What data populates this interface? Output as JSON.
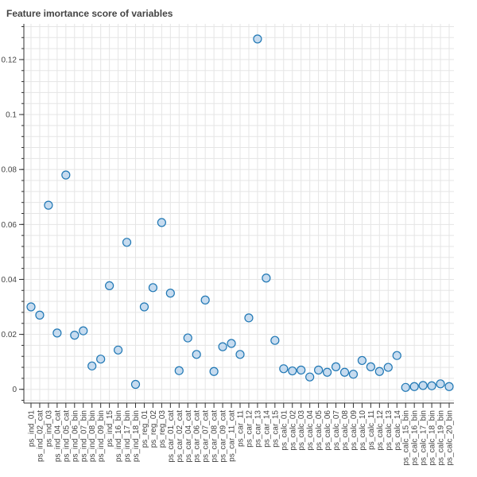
{
  "chart_data": {
    "type": "scatter",
    "title": "Feature imortance score of variables",
    "xlabel": "",
    "ylabel": "",
    "ylim": [
      -0.005,
      0.133
    ],
    "yticks": [
      0,
      0.02,
      0.04,
      0.06,
      0.08,
      0.1,
      0.12
    ],
    "ytick_labels": [
      "0",
      "0.02",
      "0.04",
      "0.06",
      "0.08",
      "0.1",
      "0.12"
    ],
    "grid": true,
    "marker": {
      "fill": "#c6dbef",
      "stroke": "#1f77b4"
    },
    "categories": [
      "ps_ind_01",
      "ps_ind_02_cat",
      "ps_ind_03",
      "ps_ind_04_cat",
      "ps_ind_05_cat",
      "ps_ind_06_bin",
      "ps_ind_07_bin",
      "ps_ind_08_bin",
      "ps_ind_09_bin",
      "ps_ind_15",
      "ps_ind_16_bin",
      "ps_ind_17_bin",
      "ps_ind_18_bin",
      "ps_reg_01",
      "ps_reg_02",
      "ps_reg_03",
      "ps_car_01_cat",
      "ps_car_02_cat",
      "ps_car_04_cat",
      "ps_car_06_cat",
      "ps_car_07_cat",
      "ps_car_08_cat",
      "ps_car_09_cat",
      "ps_car_11_cat",
      "ps_car_11",
      "ps_car_12",
      "ps_car_13",
      "ps_car_14",
      "ps_car_15",
      "ps_calc_01",
      "ps_calc_02",
      "ps_calc_03",
      "ps_calc_04",
      "ps_calc_05",
      "ps_calc_06",
      "ps_calc_07",
      "ps_calc_08",
      "ps_calc_09",
      "ps_calc_10",
      "ps_calc_11",
      "ps_calc_12",
      "ps_calc_13",
      "ps_calc_14",
      "ps_calc_15_bin",
      "ps_calc_16_bin",
      "ps_calc_17_bin",
      "ps_calc_18_bin",
      "ps_calc_19_bin",
      "ps_calc_20_bin"
    ],
    "values": [
      0.03,
      0.027,
      0.067,
      0.0205,
      0.078,
      0.0197,
      0.0213,
      0.0085,
      0.011,
      0.0377,
      0.0143,
      0.0535,
      0.0018,
      0.03,
      0.037,
      0.0607,
      0.035,
      0.0068,
      0.0187,
      0.0127,
      0.0325,
      0.0065,
      0.0155,
      0.0167,
      0.0127,
      0.026,
      0.1275,
      0.0405,
      0.0178,
      0.0075,
      0.0067,
      0.007,
      0.0045,
      0.007,
      0.0062,
      0.0082,
      0.0062,
      0.0055,
      0.0105,
      0.0082,
      0.0065,
      0.008,
      0.0123,
      0.0007,
      0.001,
      0.0014,
      0.0013,
      0.002,
      0.001
    ]
  }
}
